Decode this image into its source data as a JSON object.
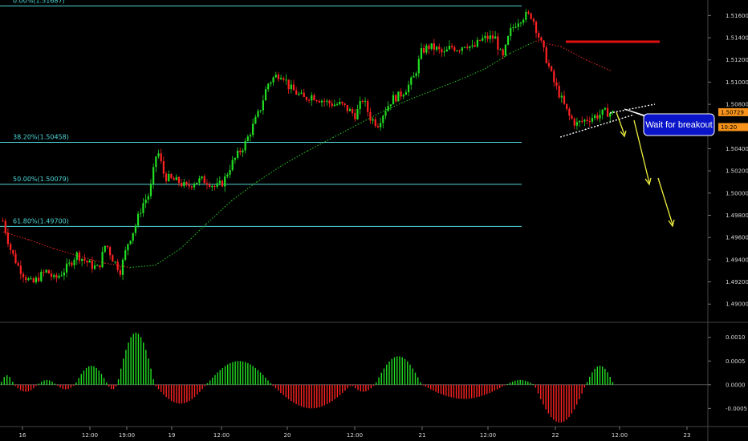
{
  "chart_data": {
    "type": "candlestick",
    "instrument_note": "",
    "price_axis": {
      "ticks": [
        "1.51600",
        "1.51400",
        "1.51200",
        "1.51000",
        "1.50800",
        "1.50600",
        "1.50400",
        "1.50200",
        "1.50000",
        "1.49800",
        "1.49600",
        "1.49400",
        "1.49200",
        "1.49000"
      ],
      "range": [
        1.4885,
        1.5174
      ]
    },
    "current_price_tags": [
      {
        "text": "1.50729",
        "value": 1.50729,
        "color": "#f7931a"
      },
      {
        "text": "10:20",
        "value": 1.50595,
        "color": "#f7931a"
      }
    ],
    "time_axis": {
      "ticks": [
        "16",
        "12:00",
        "19:00",
        "19",
        "12:00",
        "20",
        "12:00",
        "21",
        "12:00",
        "22",
        "12:00",
        "23"
      ]
    },
    "fibonacci": [
      {
        "label": "0.00%(1.51687)",
        "level": 1.51687
      },
      {
        "label": "38.20%(1.50458)",
        "level": 1.50458
      },
      {
        "label": "50.00%(1.50079)",
        "level": 1.50079
      },
      {
        "label": "61.80%(1.49700)",
        "level": 1.497
      }
    ],
    "fib_color": "#4fd7d7",
    "candle_colors": {
      "up": "#22dd22",
      "down": "#ff2222"
    },
    "price_path": [
      1.4975,
      1.495,
      1.4935,
      1.4925,
      1.4918,
      1.4925,
      1.493,
      1.4922,
      1.4928,
      1.4935,
      1.4945,
      1.494,
      1.4935,
      1.4932,
      1.4955,
      1.494,
      1.493,
      1.4955,
      1.497,
      1.499,
      1.5,
      1.504,
      1.5015,
      1.5012,
      1.501,
      1.5005,
      1.501,
      1.5012,
      1.501,
      1.5005,
      1.501,
      1.5025,
      1.5035,
      1.5045,
      1.506,
      1.5075,
      1.5098,
      1.5105,
      1.5108,
      1.5095,
      1.509,
      1.5085,
      1.5088,
      1.5085,
      1.5082,
      1.508,
      1.508,
      1.5075,
      1.507,
      1.5085,
      1.5068,
      1.5062,
      1.5075,
      1.5085,
      1.5088,
      1.5095,
      1.5105,
      1.5128,
      1.5132,
      1.513,
      1.5125,
      1.5132,
      1.513,
      1.5135,
      1.513,
      1.5138,
      1.514,
      1.514,
      1.512,
      1.5145,
      1.5155,
      1.516,
      1.516,
      1.514,
      1.512,
      1.51,
      1.5085,
      1.507,
      1.5062,
      1.5065,
      1.5068,
      1.507,
      1.5073,
      1.5072
    ],
    "ma_slow": [
      1.4965,
      1.4958,
      1.495,
      1.4943,
      1.4937,
      1.4933,
      1.4935,
      1.495,
      1.4972,
      1.4993,
      1.501,
      1.5025,
      1.5038,
      1.505,
      1.5062,
      1.5074,
      1.5084,
      1.5093,
      1.5102,
      1.5112,
      1.5126,
      1.5137,
      1.5132,
      1.512,
      1.511
    ],
    "ma_slow_colors": {
      "up": "#22aa22",
      "down": "#cc2222"
    },
    "annotations": {
      "red_line_level": 1.5135,
      "callout_text": "Wait for breakout",
      "callout_color": "#0a14c8",
      "trendline_color": "#ffffff",
      "arrow_color": "#f0f040"
    },
    "oscillator": {
      "ticks": [
        "0.0010",
        "0.0005",
        "0.0000",
        "-0.0005"
      ],
      "range": [
        -0.00085,
        0.0013
      ],
      "colors": {
        "positive": "#22dd22",
        "negative": "#ff2222"
      },
      "segments": [
        {
          "from": 0.0,
          "to": 0.03,
          "peak": 0.0002
        },
        {
          "from": 0.03,
          "to": 0.08,
          "peak": -0.00015
        },
        {
          "from": 0.08,
          "to": 0.12,
          "peak": 0.0001
        },
        {
          "from": 0.12,
          "to": 0.16,
          "peak": -0.0001
        },
        {
          "from": 0.16,
          "to": 0.23,
          "peak": 0.0004
        },
        {
          "from": 0.23,
          "to": 0.25,
          "peak": -0.0001
        },
        {
          "from": 0.25,
          "to": 0.33,
          "peak": 0.0011
        },
        {
          "from": 0.33,
          "to": 0.44,
          "peak": -0.0004
        },
        {
          "from": 0.44,
          "to": 0.58,
          "peak": 0.0005
        },
        {
          "from": 0.58,
          "to": 0.75,
          "peak": -0.0005
        },
        {
          "from": 0.75,
          "to": 0.8,
          "peak": -0.00015
        },
        {
          "from": 0.8,
          "to": 0.9,
          "peak": 0.0006
        },
        {
          "from": 0.9,
          "to": 1.08,
          "peak": -0.0003
        },
        {
          "from": 1.08,
          "to": 1.14,
          "peak": 0.0001
        },
        {
          "from": 1.14,
          "to": 1.25,
          "peak": -0.0008
        },
        {
          "from": 1.25,
          "to": 1.31,
          "peak": 0.0004
        }
      ]
    }
  }
}
